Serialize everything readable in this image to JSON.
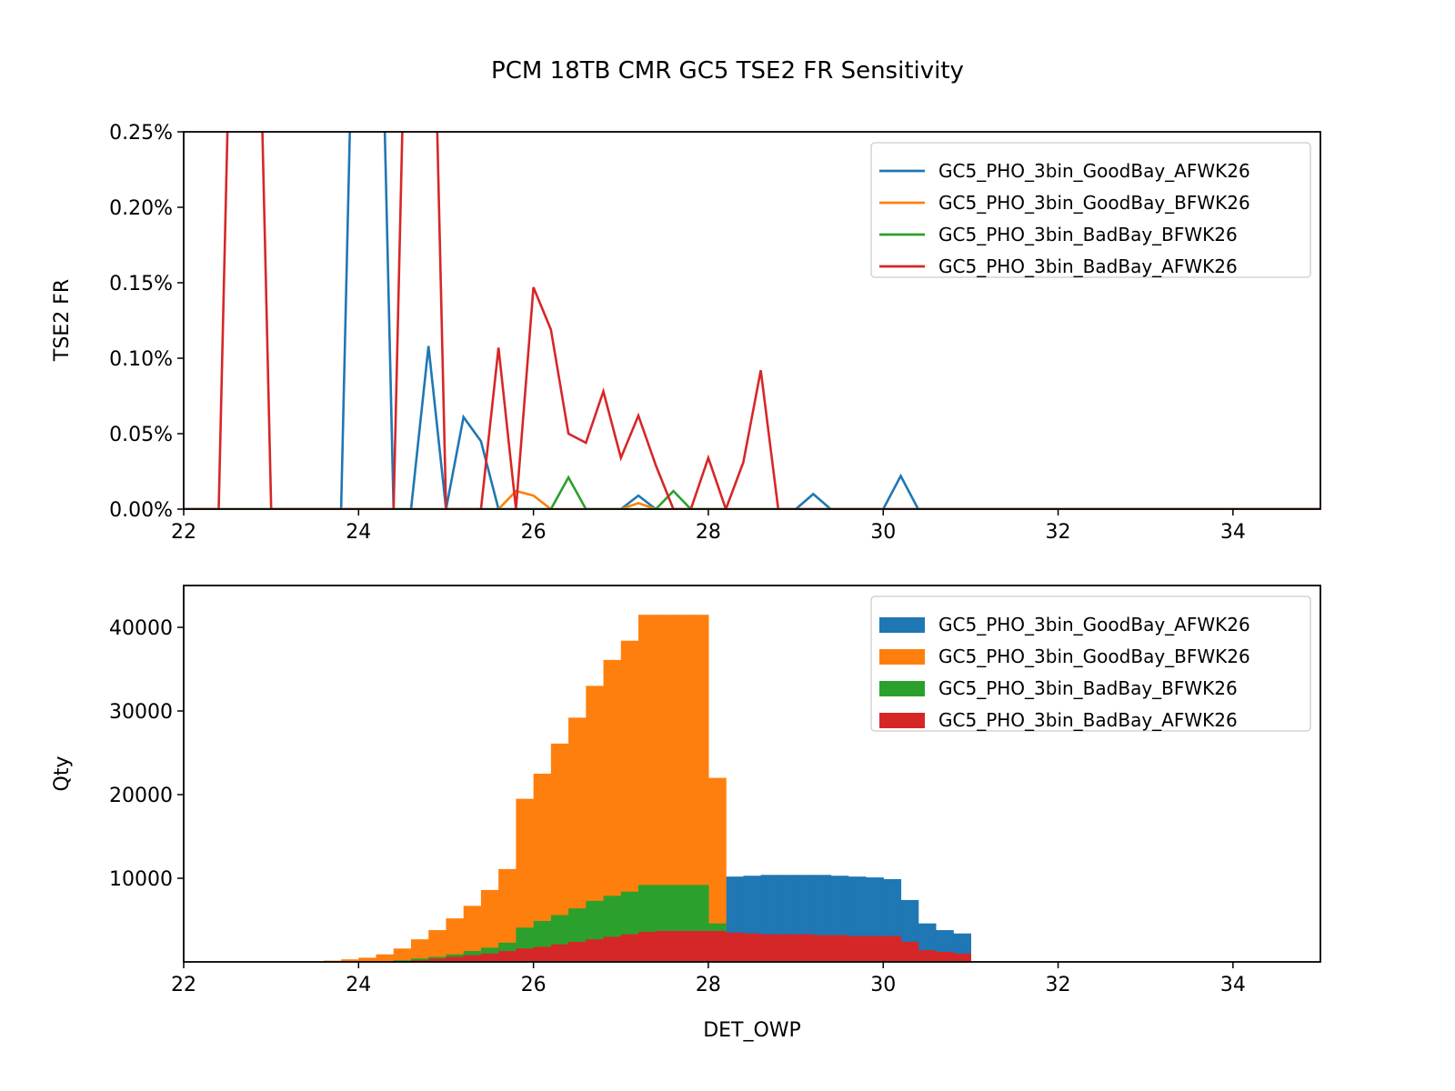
{
  "title": "PCM 18TB CMR GC5 TSE2 FR Sensitivity",
  "colors": {
    "GoodBay_AFWK26": "#1f77b4",
    "GoodBay_BFWK26": "#ff7f0e",
    "BadBay_BFWK26": "#2ca02c",
    "BadBay_AFWK26": "#d62728"
  },
  "chart_data": [
    {
      "type": "line",
      "ylabel": "TSE2 FR",
      "xlabel": "",
      "xlim": [
        22,
        35
      ],
      "ylim": [
        0,
        0.25
      ],
      "xticks": [
        "22",
        "24",
        "26",
        "28",
        "30",
        "32",
        "34"
      ],
      "yticks": [
        "0.00%",
        "0.05%",
        "0.10%",
        "0.15%",
        "0.20%",
        "0.25%"
      ],
      "legend_position": "top-right",
      "x": [
        22.0,
        22.2,
        22.4,
        22.6,
        22.8,
        23.0,
        23.2,
        23.4,
        23.6,
        23.8,
        24.0,
        24.2,
        24.4,
        24.6,
        24.8,
        25.0,
        25.2,
        25.4,
        25.6,
        25.8,
        26.0,
        26.2,
        26.4,
        26.6,
        26.8,
        27.0,
        27.2,
        27.4,
        27.6,
        27.8,
        28.0,
        28.2,
        28.4,
        28.6,
        28.8,
        29.0,
        29.2,
        29.4,
        29.6,
        29.8,
        30.0,
        30.2,
        30.4,
        30.6,
        30.8,
        31.0,
        31.2,
        31.4,
        31.6,
        31.8,
        32.0,
        32.2,
        32.4,
        32.6,
        32.8,
        33.0,
        33.2,
        33.4,
        33.6,
        33.8,
        34.0,
        34.2,
        34.4,
        34.6,
        34.8,
        35.0
      ],
      "series": [
        {
          "name": "GC5_PHO_3bin_GoodBay_AFWK26",
          "color_key": "GoodBay_AFWK26",
          "values": [
            0,
            0,
            0,
            0,
            0,
            0,
            0,
            0,
            0,
            0,
            0.5,
            0.5,
            0,
            0,
            0.108,
            0,
            0.061,
            0.045,
            0,
            0,
            0,
            0,
            0,
            0,
            0,
            0,
            0.009,
            0,
            0,
            0,
            0,
            0,
            0,
            0,
            0,
            0,
            0.01,
            0,
            0,
            0,
            0,
            0.022,
            0,
            0,
            0,
            0,
            0,
            0,
            0,
            0,
            0,
            0,
            0,
            0,
            0,
            0,
            0,
            0,
            0,
            0,
            0,
            0,
            0,
            0,
            0,
            0
          ]
        },
        {
          "name": "GC5_PHO_3bin_GoodBay_BFWK26",
          "color_key": "GoodBay_BFWK26",
          "values": [
            0,
            0,
            0,
            0,
            0,
            0,
            0,
            0,
            0,
            0,
            0,
            0,
            0,
            0,
            0,
            0,
            0,
            0,
            0,
            0.012,
            0.009,
            0,
            0,
            0,
            0,
            0,
            0.004,
            0,
            0,
            0,
            0,
            0,
            0,
            0,
            0,
            0,
            0,
            0,
            0,
            0,
            0,
            0,
            0,
            0,
            0,
            0,
            0,
            0,
            0,
            0,
            0,
            0,
            0,
            0,
            0,
            0,
            0,
            0,
            0,
            0,
            0,
            0,
            0,
            0,
            0,
            0
          ]
        },
        {
          "name": "GC5_PHO_3bin_BadBay_BFWK26",
          "color_key": "BadBay_BFWK26",
          "values": [
            0,
            0,
            0,
            0,
            0,
            0,
            0,
            0,
            0,
            0,
            0,
            0,
            0,
            0,
            0,
            0,
            0,
            0,
            0,
            0,
            0,
            0,
            0.021,
            0,
            0,
            0,
            0,
            0,
            0.012,
            0,
            0,
            0,
            0,
            0,
            0,
            0,
            0,
            0,
            0,
            0,
            0,
            0,
            0,
            0,
            0,
            0,
            0,
            0,
            0,
            0,
            0,
            0,
            0,
            0,
            0,
            0,
            0,
            0,
            0,
            0,
            0,
            0,
            0,
            0,
            0,
            0
          ]
        },
        {
          "name": "GC5_PHO_3bin_BadBay_AFWK26",
          "color_key": "BadBay_AFWK26",
          "values": [
            0,
            0,
            0,
            0.5,
            0.5,
            0,
            0,
            0,
            0,
            0,
            0,
            0,
            0,
            0.5,
            0.5,
            0,
            0,
            0,
            0.107,
            0,
            0.147,
            0.119,
            0.05,
            0.044,
            0.078,
            0.034,
            0.062,
            0.029,
            0,
            0,
            0.034,
            0,
            0.031,
            0.092,
            0,
            0,
            0,
            0,
            0,
            0,
            0,
            0,
            0,
            0,
            0,
            0,
            0,
            0,
            0,
            0,
            0,
            0,
            0,
            0,
            0,
            0,
            0,
            0,
            0,
            0,
            0,
            0,
            0,
            0,
            0,
            0
          ]
        }
      ]
    },
    {
      "type": "bar",
      "ylabel": "Qty",
      "xlabel": "DET_OWP",
      "xlim": [
        22,
        35
      ],
      "ylim": [
        0,
        45000
      ],
      "xticks": [
        "22",
        "24",
        "26",
        "28",
        "30",
        "32",
        "34"
      ],
      "yticks": [
        "10000",
        "20000",
        "30000",
        "40000"
      ],
      "legend_position": "top-right",
      "bin_width": 0.2,
      "series": [
        {
          "name": "GC5_PHO_3bin_GoodBay_AFWK26",
          "color_key": "GoodBay_AFWK26",
          "bins_start": [
            28.2,
            28.4,
            28.6,
            28.8,
            29.0,
            29.2,
            29.4,
            29.6,
            29.8,
            30.0,
            30.2,
            30.4,
            30.6,
            30.8
          ],
          "values": [
            10200,
            10300,
            10400,
            10400,
            10400,
            10400,
            10300,
            10200,
            10100,
            9900,
            7400,
            4600,
            3800,
            3400
          ]
        },
        {
          "name": "GC5_PHO_3bin_GoodBay_BFWK26",
          "color_key": "GoodBay_BFWK26",
          "bins_start": [
            23.6,
            23.8,
            24.0,
            24.2,
            24.4,
            24.6,
            24.8,
            25.0,
            25.2,
            25.4,
            25.6,
            25.8,
            26.0,
            26.2,
            26.4,
            26.6,
            26.8,
            27.0,
            27.2,
            27.4,
            27.6,
            27.8,
            28.0
          ],
          "values": [
            150,
            300,
            500,
            900,
            1600,
            2700,
            3800,
            5200,
            6700,
            8600,
            11100,
            19500,
            22500,
            26100,
            29200,
            33000,
            36100,
            38400,
            41500,
            41500,
            41500,
            41500,
            22000
          ]
        },
        {
          "name": "GC5_PHO_3bin_BadBay_BFWK26",
          "color_key": "BadBay_BFWK26",
          "bins_start": [
            24.4,
            24.6,
            24.8,
            25.0,
            25.2,
            25.4,
            25.6,
            25.8,
            26.0,
            26.2,
            26.4,
            26.6,
            26.8,
            27.0,
            27.2,
            27.4,
            27.6,
            27.8,
            28.0
          ],
          "values": [
            200,
            400,
            600,
            900,
            1300,
            1700,
            2300,
            4100,
            4900,
            5600,
            6400,
            7300,
            7900,
            8400,
            9200,
            9200,
            9200,
            9200,
            4600
          ]
        },
        {
          "name": "GC5_PHO_3bin_BadBay_AFWK26",
          "color_key": "BadBay_AFWK26",
          "bins_start": [
            24.6,
            24.8,
            25.0,
            25.2,
            25.4,
            25.6,
            25.8,
            26.0,
            26.2,
            26.4,
            26.6,
            26.8,
            27.0,
            27.2,
            27.4,
            27.6,
            27.8,
            28.0,
            28.2,
            28.4,
            28.6,
            28.8,
            29.0,
            29.2,
            29.4,
            29.6,
            29.8,
            30.0,
            30.2,
            30.4,
            30.6,
            30.8
          ],
          "values": [
            200,
            400,
            600,
            800,
            1000,
            1300,
            1600,
            1800,
            2100,
            2400,
            2700,
            3000,
            3300,
            3600,
            3700,
            3700,
            3700,
            3700,
            3500,
            3400,
            3300,
            3300,
            3300,
            3200,
            3200,
            3100,
            3100,
            3100,
            2400,
            1400,
            1200,
            1000
          ]
        }
      ]
    }
  ]
}
